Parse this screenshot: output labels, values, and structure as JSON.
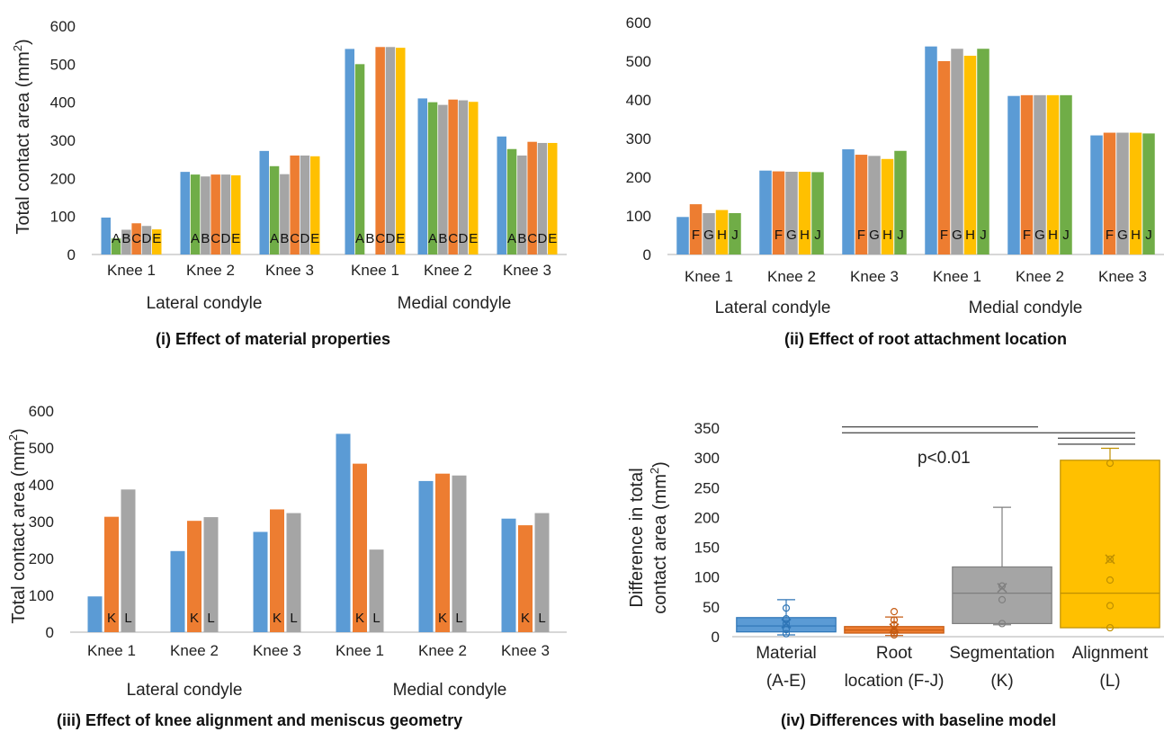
{
  "chart_data": [
    {
      "id": "p1",
      "type": "bar",
      "title": "(i) Effect of material properties",
      "ylabel_main": "Total contact area (mm",
      "ylabel_sup": "2",
      "ylabel_end": ")",
      "ylim": [
        0,
        600
      ],
      "yticks": [
        0,
        100,
        200,
        300,
        400,
        500,
        600
      ],
      "categories": [
        "Knee 1",
        "Knee 2",
        "Knee 3",
        "Knee 1",
        "Knee 2",
        "Knee 3"
      ],
      "groups": [
        "Lateral condyle",
        "Medial condyle"
      ],
      "bar_letters": [
        "A",
        "B",
        "C",
        "D",
        "E"
      ],
      "series": [
        {
          "values": [
            97,
            217,
            272,
            540,
            410,
            310
          ],
          "color": "#5b9bd5"
        },
        {
          "values": [
            42,
            210,
            232,
            500,
            400,
            277
          ],
          "color": "#70ad47"
        },
        {
          "values": [
            65,
            205,
            211,
            0,
            393,
            260
          ],
          "color": "#a5a5a5"
        },
        {
          "values": [
            82,
            210,
            260,
            545,
            407,
            296
          ],
          "color": "#ed7d31"
        },
        {
          "values": [
            75,
            210,
            260,
            545,
            405,
            293
          ],
          "color": "#a5a5a5"
        },
        {
          "values": [
            66,
            208,
            258,
            543,
            401,
            293
          ],
          "color": "#ffc000"
        }
      ]
    },
    {
      "id": "p2",
      "type": "bar",
      "title": "(ii) Effect of root attachment location",
      "ylim": [
        0,
        600
      ],
      "yticks": [
        0,
        100,
        200,
        300,
        400,
        500,
        600
      ],
      "categories": [
        "Knee 1",
        "Knee 2",
        "Knee 3",
        "Knee 1",
        "Knee 2",
        "Knee 3"
      ],
      "groups": [
        "Lateral condyle",
        "Medial condyle"
      ],
      "bar_letters": [
        "F",
        "G",
        "H",
        "J"
      ],
      "series": [
        {
          "values": [
            97,
            217,
            272,
            538,
            410,
            308
          ],
          "color": "#5b9bd5"
        },
        {
          "values": [
            130,
            215,
            258,
            500,
            412,
            315
          ],
          "color": "#ed7d31"
        },
        {
          "values": [
            107,
            214,
            255,
            532,
            412,
            315
          ],
          "color": "#a5a5a5"
        },
        {
          "values": [
            115,
            214,
            247,
            514,
            412,
            315
          ],
          "color": "#ffc000"
        },
        {
          "values": [
            107,
            213,
            268,
            532,
            412,
            313
          ],
          "color": "#70ad47"
        }
      ]
    },
    {
      "id": "p3",
      "type": "bar",
      "title": "(iii) Effect of knee alignment and meniscus geometry",
      "ylabel_main": "Total contact area (mm",
      "ylabel_sup": "2",
      "ylabel_end": ")",
      "ylim": [
        0,
        600
      ],
      "yticks": [
        0,
        100,
        200,
        300,
        400,
        500,
        600
      ],
      "categories": [
        "Knee 1",
        "Knee 2",
        "Knee 3",
        "Knee 1",
        "Knee 2",
        "Knee 3"
      ],
      "groups": [
        "Lateral condyle",
        "Medial condyle"
      ],
      "bar_letters": [
        "K",
        "L"
      ],
      "series": [
        {
          "values": [
            97,
            220,
            272,
            538,
            410,
            308
          ],
          "color": "#5b9bd5"
        },
        {
          "values": [
            313,
            302,
            333,
            457,
            430,
            290
          ],
          "color": "#ed7d31"
        },
        {
          "values": [
            387,
            312,
            323,
            224,
            425,
            323
          ],
          "color": "#a5a5a5"
        }
      ]
    },
    {
      "id": "p4",
      "type": "box",
      "title": "(iv) Differences with baseline model",
      "ylabel_line1_main": "Difference in total",
      "ylabel_line2_main": "contact area (mm",
      "ylabel_sup": "2",
      "ylabel_end": ")",
      "ylim": [
        0,
        350
      ],
      "yticks": [
        0,
        50,
        100,
        150,
        200,
        250,
        300,
        350
      ],
      "annotation": "p<0.01",
      "categories": [
        {
          "line1": "Material",
          "line2": "(A-E)"
        },
        {
          "line1": "Root",
          "line2": "location (F-J)"
        },
        {
          "line1": "Segmentation",
          "line2": "(K)"
        },
        {
          "line1": "Alignment",
          "line2": "(L)"
        }
      ],
      "boxes": [
        {
          "min": 3,
          "q1": 8,
          "median": 18,
          "q3": 32,
          "max": 62,
          "mean": 22,
          "points": [
            48,
            30,
            22,
            12,
            5
          ],
          "color": "#5b9bd5",
          "stroke": "#2e75b6"
        },
        {
          "min": 2,
          "q1": 6,
          "median": 11,
          "q3": 17,
          "max": 33,
          "mean": 14,
          "points": [
            42,
            28,
            20,
            10,
            6,
            3
          ],
          "color": "#ed7d31",
          "stroke": "#c55a11"
        },
        {
          "min": 20,
          "q1": 22,
          "median": 73,
          "q3": 117,
          "max": 217,
          "mean": 82,
          "points": [
            85,
            62,
            22
          ],
          "color": "#a5a5a5",
          "stroke": "#7f7f7f"
        },
        {
          "min": 15,
          "q1": 15,
          "median": 73,
          "q3": 296,
          "max": 316,
          "mean": 130,
          "points": [
            291,
            130,
            95,
            52,
            15
          ],
          "color": "#ffc000",
          "stroke": "#bf9000"
        }
      ],
      "significance_bars": [
        {
          "from": 0,
          "to": 2,
          "y": 352
        },
        {
          "from": 0,
          "to": 3,
          "y": 342
        },
        {
          "from": 2,
          "to": 3,
          "y": 333
        },
        {
          "from": 2,
          "to": 3,
          "y": 323
        }
      ]
    }
  ]
}
